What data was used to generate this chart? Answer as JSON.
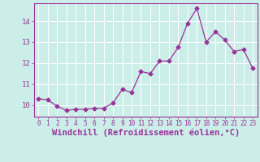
{
  "x": [
    0,
    1,
    2,
    3,
    4,
    5,
    6,
    7,
    8,
    9,
    10,
    11,
    12,
    13,
    14,
    15,
    16,
    17,
    18,
    19,
    20,
    21,
    22,
    23
  ],
  "y": [
    10.3,
    10.25,
    9.95,
    9.75,
    9.8,
    9.8,
    9.85,
    9.85,
    10.1,
    10.75,
    10.6,
    11.6,
    11.5,
    12.1,
    12.1,
    12.75,
    13.9,
    14.6,
    13.0,
    13.5,
    13.1,
    12.55,
    12.65,
    11.75
  ],
  "line_color": "#993399",
  "marker": "D",
  "marker_size": 2.5,
  "xlabel": "Windchill (Refroidissement éolien,°C)",
  "xlabel_fontsize": 7.5,
  "xtick_fontsize": 5.5,
  "ytick_fontsize": 6.5,
  "yticks": [
    10,
    11,
    12,
    13,
    14
  ],
  "ylim": [
    9.45,
    14.85
  ],
  "xlim": [
    -0.5,
    23.5
  ],
  "bg_color": "#cceee8",
  "grid_color": "#aadddd",
  "spine_color": "#993399",
  "tick_color": "#993399",
  "label_color": "#993399"
}
